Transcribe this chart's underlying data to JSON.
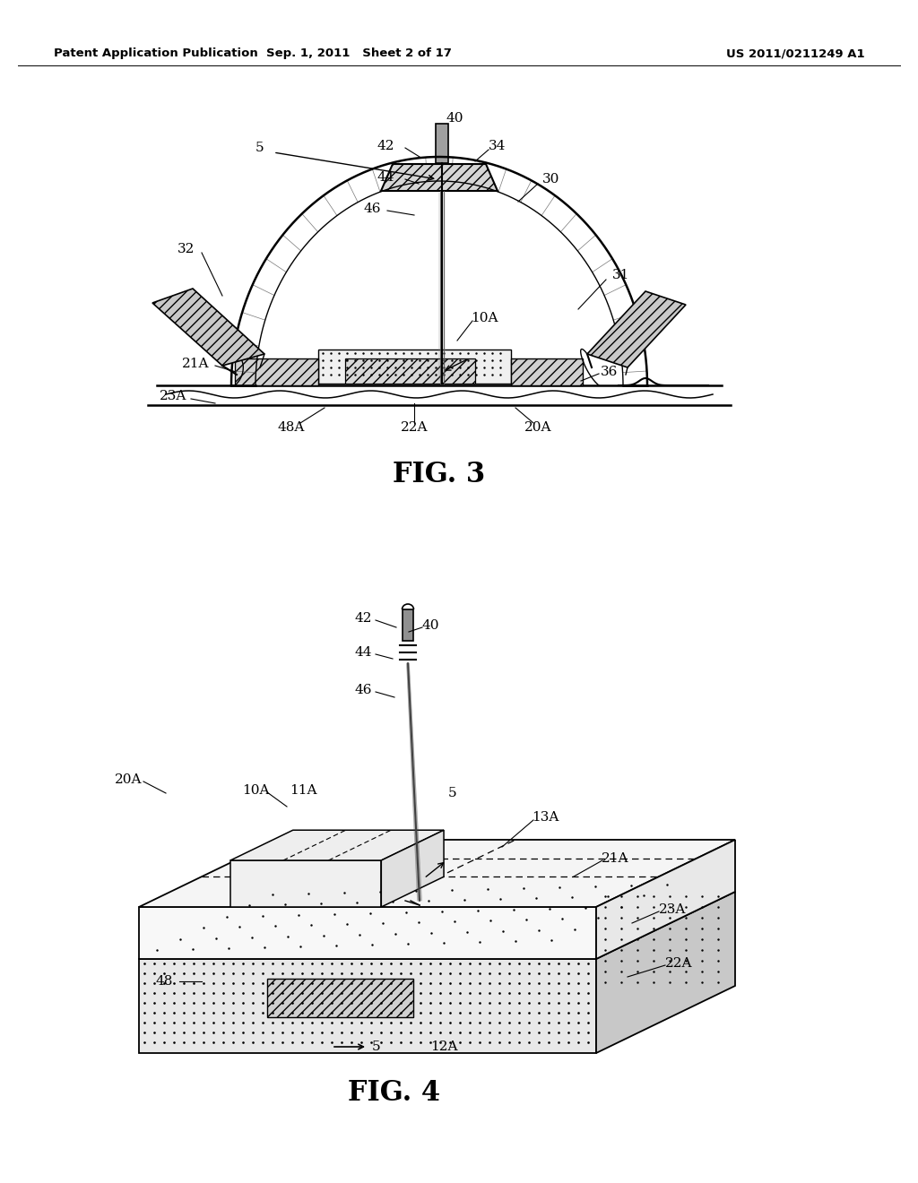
{
  "bg_color": "#ffffff",
  "line_color": "#000000",
  "header_left": "Patent Application Publication",
  "header_center": "Sep. 1, 2011   Sheet 2 of 17",
  "header_right": "US 2011/0211249 A1",
  "fig3_caption": "FIG. 3",
  "fig4_caption": "FIG. 4"
}
